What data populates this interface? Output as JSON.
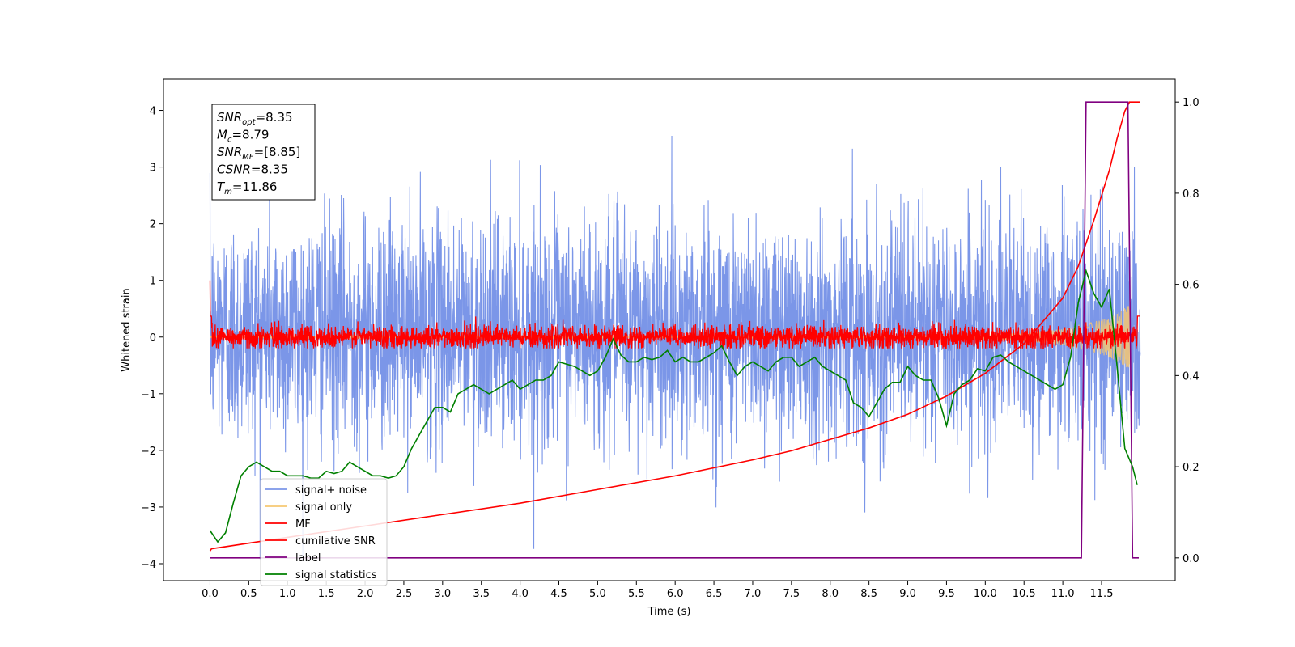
{
  "chart_data": {
    "type": "line",
    "title": "",
    "xlabel": "Time (s)",
    "ylabel": "Whitened strain",
    "xlim": [
      -0.6,
      12.45
    ],
    "ylim": [
      -4.3,
      4.55
    ],
    "y2lim": [
      -0.05,
      1.05
    ],
    "x_ticks": [
      "0.0",
      "0.5",
      "1.0",
      "1.5",
      "2.0",
      "2.5",
      "3.0",
      "3.5",
      "4.0",
      "4.5",
      "5.0",
      "5.5",
      "6.0",
      "6.5",
      "7.0",
      "7.5",
      "8.0",
      "8.5",
      "9.0",
      "9.5",
      "10.0",
      "10.5",
      "11.0",
      "11.5"
    ],
    "y_ticks": [
      "4",
      "3",
      "2",
      "1",
      "0",
      "−1",
      "−2",
      "−3",
      "−4"
    ],
    "y2_ticks": [
      "1.0",
      "0.8",
      "0.6",
      "0.4",
      "0.2",
      "0.0"
    ],
    "grid": false,
    "legend_position": "lower-left",
    "annotation": {
      "lines": [
        {
          "main": "SNR",
          "sub": "opt",
          "value": "=8.35"
        },
        {
          "main": "M",
          "sub": "c",
          "value": "=8.79"
        },
        {
          "main": "SNR",
          "sub": "MF",
          "value": "=[8.85]"
        },
        {
          "main": "CSNR",
          "sub": "",
          "value": "=8.35"
        },
        {
          "main": "T",
          "sub": "m",
          "value": "=11.86"
        }
      ]
    },
    "series": [
      {
        "name": "signal+ noise",
        "color": "#7b96e8",
        "axis": "left",
        "kind": "noise",
        "t_range": [
          0,
          12
        ],
        "std": 1.0,
        "chirp_end": 11.86
      },
      {
        "name": "signal only",
        "color": "#f6c872",
        "axis": "left",
        "kind": "chirp",
        "t_range": [
          0,
          11.86
        ],
        "peak_amp": 0.55
      },
      {
        "name": "MF",
        "color": "#ff0000",
        "axis": "left",
        "kind": "mf_noise",
        "t_range": [
          0,
          12
        ],
        "std": 0.1,
        "start_value": 1.0
      },
      {
        "name": "cumilative SNR",
        "color": "#ff0000",
        "axis": "right",
        "x": [
          0,
          0.02,
          1,
          2,
          3,
          4,
          5,
          6,
          7,
          7.5,
          8,
          8.5,
          9,
          9.5,
          10,
          10.5,
          11,
          11.2,
          11.4,
          11.6,
          11.7,
          11.8,
          11.86,
          12
        ],
        "y": [
          0.015,
          0.02,
          0.045,
          0.07,
          0.095,
          0.12,
          0.15,
          0.18,
          0.215,
          0.235,
          0.26,
          0.285,
          0.315,
          0.355,
          0.405,
          0.47,
          0.57,
          0.64,
          0.74,
          0.85,
          0.92,
          0.98,
          1.0,
          1.0
        ]
      },
      {
        "name": "label",
        "color": "#800080",
        "axis": "right",
        "x": [
          0,
          11.24,
          11.3,
          11.84,
          11.9,
          11.98
        ],
        "y": [
          0.0,
          0.0,
          1.0,
          1.0,
          0.0,
          0.0
        ]
      },
      {
        "name": "signal statistics",
        "color": "#008000",
        "axis": "right",
        "x": [
          0,
          0.1,
          0.2,
          0.3,
          0.4,
          0.5,
          0.6,
          0.7,
          0.8,
          0.9,
          1.0,
          1.1,
          1.2,
          1.3,
          1.4,
          1.5,
          1.6,
          1.7,
          1.8,
          1.9,
          2.0,
          2.1,
          2.2,
          2.3,
          2.4,
          2.5,
          2.6,
          2.7,
          2.8,
          2.9,
          3.0,
          3.1,
          3.2,
          3.3,
          3.4,
          3.5,
          3.6,
          3.7,
          3.8,
          3.9,
          4.0,
          4.1,
          4.2,
          4.3,
          4.4,
          4.5,
          4.6,
          4.7,
          4.8,
          4.9,
          5.0,
          5.1,
          5.2,
          5.3,
          5.4,
          5.5,
          5.6,
          5.7,
          5.8,
          5.9,
          6.0,
          6.1,
          6.2,
          6.3,
          6.4,
          6.5,
          6.6,
          6.7,
          6.8,
          6.9,
          7.0,
          7.1,
          7.2,
          7.3,
          7.4,
          7.5,
          7.6,
          7.7,
          7.8,
          7.9,
          8.0,
          8.1,
          8.2,
          8.3,
          8.4,
          8.5,
          8.6,
          8.7,
          8.8,
          8.9,
          9.0,
          9.1,
          9.2,
          9.3,
          9.4,
          9.5,
          9.6,
          9.7,
          9.8,
          9.9,
          10.0,
          10.1,
          10.2,
          10.3,
          10.4,
          10.5,
          10.6,
          10.7,
          10.8,
          10.9,
          11.0,
          11.1,
          11.2,
          11.3,
          11.4,
          11.5,
          11.6,
          11.7,
          11.8,
          11.9,
          11.96
        ],
        "y": [
          0.06,
          0.035,
          0.055,
          0.12,
          0.18,
          0.2,
          0.21,
          0.2,
          0.19,
          0.19,
          0.18,
          0.18,
          0.18,
          0.175,
          0.175,
          0.19,
          0.185,
          0.19,
          0.21,
          0.2,
          0.19,
          0.18,
          0.18,
          0.175,
          0.18,
          0.2,
          0.24,
          0.27,
          0.3,
          0.33,
          0.33,
          0.32,
          0.36,
          0.37,
          0.38,
          0.37,
          0.36,
          0.37,
          0.38,
          0.39,
          0.37,
          0.38,
          0.39,
          0.39,
          0.4,
          0.43,
          0.425,
          0.42,
          0.41,
          0.4,
          0.41,
          0.44,
          0.48,
          0.445,
          0.43,
          0.43,
          0.44,
          0.435,
          0.44,
          0.455,
          0.43,
          0.44,
          0.43,
          0.43,
          0.44,
          0.45,
          0.465,
          0.43,
          0.4,
          0.42,
          0.43,
          0.42,
          0.41,
          0.43,
          0.44,
          0.44,
          0.42,
          0.43,
          0.44,
          0.42,
          0.41,
          0.4,
          0.39,
          0.34,
          0.33,
          0.31,
          0.34,
          0.37,
          0.385,
          0.385,
          0.42,
          0.4,
          0.39,
          0.39,
          0.35,
          0.29,
          0.36,
          0.38,
          0.39,
          0.415,
          0.41,
          0.44,
          0.445,
          0.43,
          0.42,
          0.41,
          0.4,
          0.39,
          0.38,
          0.37,
          0.38,
          0.44,
          0.56,
          0.63,
          0.58,
          0.55,
          0.59,
          0.42,
          0.24,
          0.2,
          0.16
        ]
      }
    ]
  }
}
